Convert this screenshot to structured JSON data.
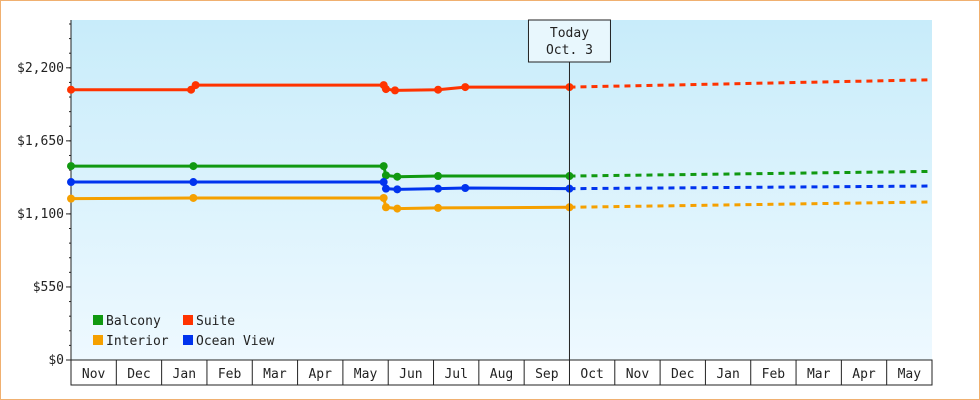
{
  "chart_data": {
    "type": "line",
    "y_ticks": [
      "$0",
      "$550",
      "$1,100",
      "$1,650",
      "$2,200"
    ],
    "y_tick_values": [
      0,
      550,
      1100,
      1650,
      2200
    ],
    "ylim": [
      0,
      2560
    ],
    "months": [
      "Nov",
      "Dec",
      "Jan",
      "Feb",
      "Mar",
      "Apr",
      "May",
      "Jun",
      "Jul",
      "Aug",
      "Sep",
      "Oct",
      "Nov",
      "Dec",
      "Jan",
      "Feb",
      "Mar",
      "Apr",
      "May"
    ],
    "x_range_months": [
      0,
      19
    ],
    "today": {
      "line1": "Today",
      "line2": "Oct. 3",
      "x": 11.0
    },
    "legend_rows": [
      [
        "Balcony",
        "Suite"
      ],
      [
        "Interior",
        "Ocean View"
      ]
    ],
    "colors": {
      "Balcony": "#119911",
      "Suite": "#ff3300",
      "Interior": "#f5a000",
      "Ocean View": "#0033ee"
    },
    "series": [
      {
        "name": "Suite",
        "points": [
          [
            0.0,
            2035
          ],
          [
            2.65,
            2035
          ],
          [
            2.75,
            2070
          ],
          [
            6.9,
            2070
          ],
          [
            6.95,
            2040
          ],
          [
            7.15,
            2030
          ],
          [
            8.1,
            2035
          ],
          [
            8.7,
            2055
          ],
          [
            11.0,
            2055
          ]
        ],
        "forecast": [
          [
            11.0,
            2055
          ],
          [
            19.0,
            2110
          ]
        ]
      },
      {
        "name": "Balcony",
        "points": [
          [
            0.0,
            1460
          ],
          [
            2.7,
            1460
          ],
          [
            6.9,
            1460
          ],
          [
            6.95,
            1390
          ],
          [
            7.2,
            1380
          ],
          [
            8.1,
            1385
          ],
          [
            11.0,
            1385
          ]
        ],
        "forecast": [
          [
            11.0,
            1385
          ],
          [
            19.0,
            1420
          ]
        ]
      },
      {
        "name": "Ocean View",
        "points": [
          [
            0.0,
            1340
          ],
          [
            2.7,
            1340
          ],
          [
            6.9,
            1340
          ],
          [
            6.95,
            1290
          ],
          [
            7.2,
            1285
          ],
          [
            8.1,
            1290
          ],
          [
            8.7,
            1295
          ],
          [
            11.0,
            1290
          ]
        ],
        "forecast": [
          [
            11.0,
            1290
          ],
          [
            19.0,
            1310
          ]
        ]
      },
      {
        "name": "Interior",
        "points": [
          [
            0.0,
            1215
          ],
          [
            2.7,
            1220
          ],
          [
            6.9,
            1220
          ],
          [
            6.95,
            1150
          ],
          [
            7.2,
            1140
          ],
          [
            8.1,
            1145
          ],
          [
            11.0,
            1150
          ]
        ],
        "forecast": [
          [
            11.0,
            1150
          ],
          [
            19.0,
            1190
          ]
        ]
      }
    ]
  }
}
